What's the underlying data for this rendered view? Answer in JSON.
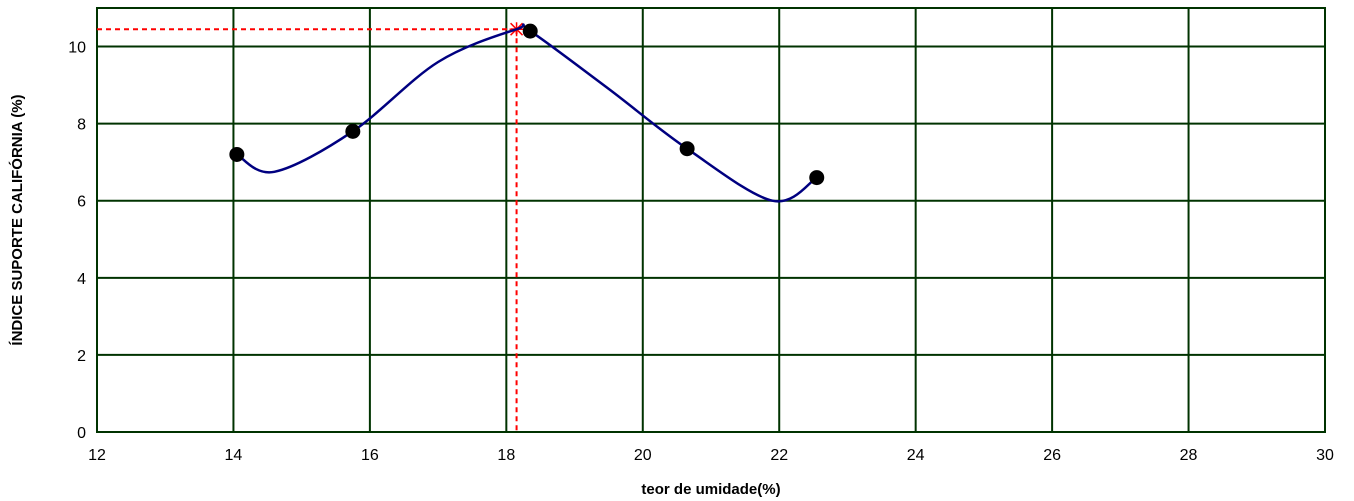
{
  "chart_data": {
    "type": "scatter",
    "title": "",
    "xlabel": "teor de umidade(%)",
    "ylabel": "ÍNDICE SUPORTE CALIFÓRNIA (%)",
    "xlim": [
      12,
      30
    ],
    "ylim": [
      0,
      11
    ],
    "xticks": [
      "12",
      "14",
      "16",
      "18",
      "20",
      "22",
      "24",
      "26",
      "28",
      "30"
    ],
    "yticks": [
      "0",
      "2",
      "4",
      "6",
      "8",
      "10"
    ],
    "grid": true,
    "legend": "none",
    "series": [
      {
        "x": [
          14.05,
          15.75,
          18.35,
          20.65,
          22.55
        ],
        "y": [
          7.2,
          7.8,
          10.4,
          7.35,
          6.6
        ],
        "marker": "circle",
        "color": "#000000"
      }
    ],
    "fit_curve": {
      "x": [
        14.05,
        14.6,
        15.75,
        17.0,
        18.15,
        18.35,
        19.5,
        20.65,
        21.9,
        22.55
      ],
      "y": [
        7.2,
        6.75,
        7.8,
        9.6,
        10.45,
        10.4,
        8.9,
        7.35,
        6.0,
        6.6
      ],
      "color": "#000080"
    },
    "optimum": {
      "x": 18.15,
      "y": 10.45,
      "color": "#ff0000"
    },
    "colors": {
      "grid": "#003300",
      "curve": "#000080",
      "marker": "#000000",
      "reference": "#ff0000"
    }
  }
}
